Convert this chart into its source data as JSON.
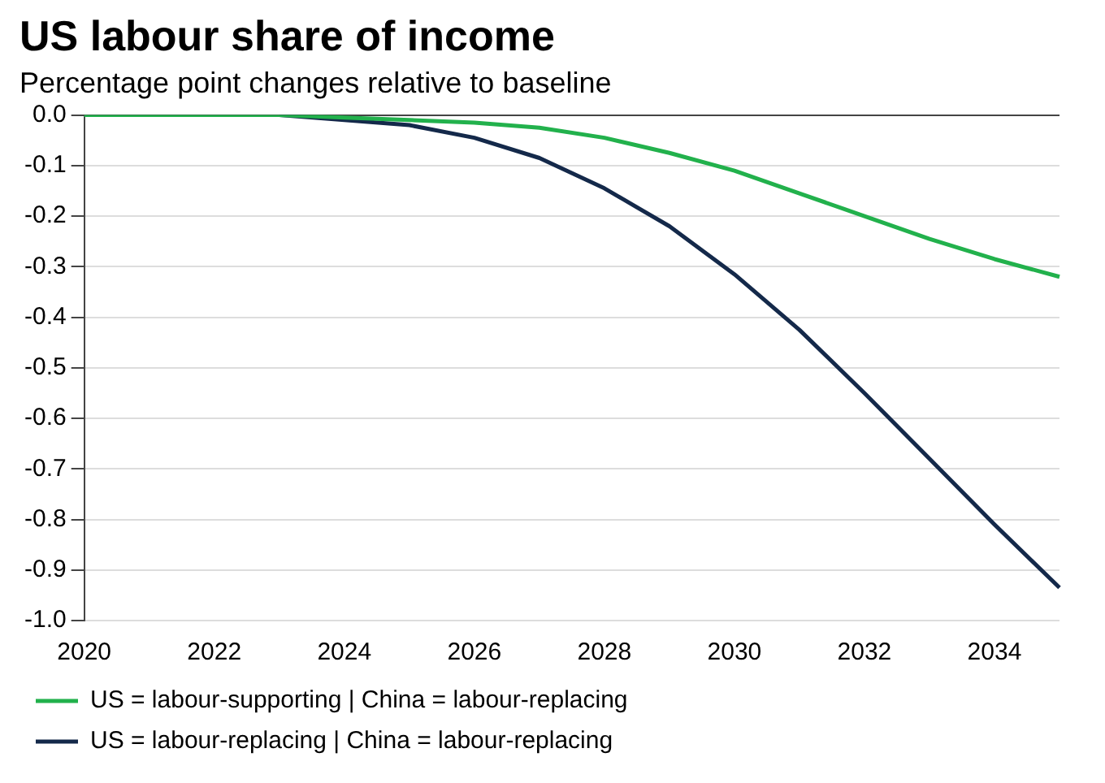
{
  "chart_data": {
    "type": "line",
    "title": "US labour share of income",
    "subtitle": "Percentage point changes relative to baseline",
    "categories": [
      "2020",
      null,
      "2022",
      null,
      "2024",
      null,
      "2026",
      null,
      "2028",
      null,
      "2030",
      null,
      "2032",
      null,
      "2034",
      null
    ],
    "series": [
      {
        "name": "US = labour-replacing | China = labour-replacing",
        "color": "#14294a",
        "values": [
          null,
          null,
          null,
          0,
          -0.01,
          -0.02,
          -0.045,
          -0.085,
          -0.145,
          -0.22,
          -0.315,
          -0.425,
          -0.55,
          -0.68,
          -0.81,
          -0.935
        ]
      },
      {
        "name": "US = labour-supporting | China = labour-replacing",
        "color": "#22b14c",
        "values": [
          0,
          0,
          0,
          0,
          -0.005,
          -0.01,
          -0.015,
          -0.025,
          -0.045,
          -0.075,
          -0.11,
          -0.155,
          -0.2,
          -0.245,
          -0.285,
          -0.32
        ]
      }
    ],
    "ylim": [
      -1.0,
      0.0
    ],
    "yticks": [
      {
        "value": 0,
        "label": "0.0"
      },
      -0.1,
      -0.2,
      -0.3,
      -0.4,
      -0.5,
      -0.6,
      -0.7,
      -0.8,
      -0.9,
      {
        "value": -1,
        "label": "-1.0"
      }
    ],
    "grid": "y",
    "legend": "bottom",
    "marker": "none",
    "line_style": "solid"
  }
}
